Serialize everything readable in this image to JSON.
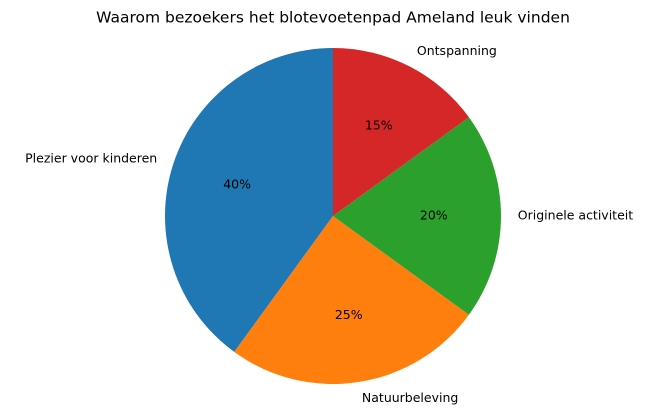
{
  "chart_data": {
    "type": "pie",
    "title": "Waarom bezoekers het blotevoetenpad Ameland leuk vinden",
    "categories": [
      "Plezier voor kinderen",
      "Natuurbeleving",
      "Originele activiteit",
      "Ontspanning"
    ],
    "values": [
      40,
      25,
      20,
      15
    ],
    "value_labels": [
      "40%",
      "25%",
      "20%",
      "15%"
    ],
    "colors": [
      "#1f77b4",
      "#ff7f0e",
      "#2ca02c",
      "#d62728"
    ]
  }
}
